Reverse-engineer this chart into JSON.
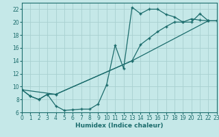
{
  "xlabel": "Humidex (Indice chaleur)",
  "background_color": "#c5e8e8",
  "grid_color": "#a8d0d0",
  "line_color": "#1a6b6b",
  "xlim": [
    0,
    23
  ],
  "ylim": [
    6,
    23
  ],
  "yticks": [
    6,
    8,
    10,
    12,
    14,
    16,
    18,
    20,
    22
  ],
  "xticks": [
    0,
    1,
    2,
    3,
    4,
    5,
    6,
    7,
    8,
    9,
    10,
    11,
    12,
    13,
    14,
    15,
    16,
    17,
    18,
    19,
    20,
    21,
    22,
    23
  ],
  "curve1_x": [
    0,
    1,
    2,
    3,
    4,
    5,
    6,
    7,
    8,
    9,
    10,
    11,
    12,
    13,
    14,
    15,
    16,
    17,
    18,
    19,
    20,
    21,
    22
  ],
  "curve1_y": [
    9.5,
    8.5,
    8.0,
    8.8,
    7.0,
    6.3,
    6.4,
    6.5,
    6.5,
    7.3,
    10.3,
    16.4,
    12.8,
    22.3,
    21.3,
    22.0,
    22.0,
    21.2,
    20.8,
    20.0,
    20.0,
    21.3,
    20.2
  ],
  "curve2_x": [
    0,
    1,
    2,
    3,
    4,
    13,
    14,
    15,
    16,
    17,
    18,
    19,
    20,
    21,
    22,
    23
  ],
  "curve2_y": [
    9.5,
    8.5,
    8.0,
    8.8,
    8.8,
    14.0,
    16.5,
    17.5,
    18.5,
    19.3,
    20.0,
    20.0,
    20.5,
    20.3,
    20.2,
    20.2
  ],
  "curve3_x": [
    0,
    4,
    13,
    22,
    23
  ],
  "curve3_y": [
    9.5,
    8.8,
    14.0,
    20.2,
    20.2
  ]
}
